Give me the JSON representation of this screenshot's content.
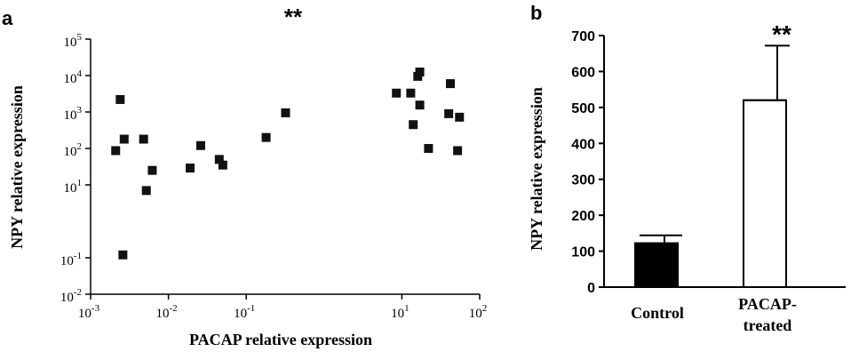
{
  "chart_data": [
    {
      "panel_label": "a",
      "type": "scatter",
      "significance": "**",
      "xlabel": "PACAP relative expression",
      "ylabel": "NPY relative expression",
      "xscale": "log",
      "yscale": "log",
      "xlim": [
        0.001,
        100
      ],
      "ylim": [
        0.01,
        100000
      ],
      "x_ticks": [
        {
          "value": 0.001,
          "base": "10",
          "exp": "-3"
        },
        {
          "value": 0.01,
          "base": "10",
          "exp": "-2"
        },
        {
          "value": 0.1,
          "base": "10",
          "exp": "-1"
        },
        {
          "value": 10,
          "base": "10",
          "exp": "1"
        },
        {
          "value": 100,
          "base": "10",
          "exp": "2"
        }
      ],
      "y_ticks": [
        {
          "value": 0.01,
          "base": "10",
          "exp": "-2"
        },
        {
          "value": 0.1,
          "base": "10",
          "exp": "-1"
        },
        {
          "value": 10,
          "base": "10",
          "exp": "1"
        },
        {
          "value": 100,
          "base": "10",
          "exp": "2"
        },
        {
          "value": 1000,
          "base": "10",
          "exp": "3"
        },
        {
          "value": 10000,
          "base": "10",
          "exp": "4"
        },
        {
          "value": 100000,
          "base": "10",
          "exp": "5"
        }
      ],
      "grid": false,
      "points": [
        {
          "x": 0.0021,
          "y": 87
        },
        {
          "x": 0.0024,
          "y": 2200
        },
        {
          "x": 0.0026,
          "y": 0.12
        },
        {
          "x": 0.0027,
          "y": 180
        },
        {
          "x": 0.0048,
          "y": 180
        },
        {
          "x": 0.0052,
          "y": 7
        },
        {
          "x": 0.0062,
          "y": 25
        },
        {
          "x": 0.019,
          "y": 29
        },
        {
          "x": 0.026,
          "y": 120
        },
        {
          "x": 0.045,
          "y": 50
        },
        {
          "x": 0.05,
          "y": 35
        },
        {
          "x": 0.18,
          "y": 200
        },
        {
          "x": 0.32,
          "y": 950
        },
        {
          "x": 8.5,
          "y": 3300
        },
        {
          "x": 13,
          "y": 3300
        },
        {
          "x": 14,
          "y": 450
        },
        {
          "x": 16,
          "y": 9500
        },
        {
          "x": 17,
          "y": 12500
        },
        {
          "x": 17,
          "y": 1550
        },
        {
          "x": 22,
          "y": 100
        },
        {
          "x": 40,
          "y": 900
        },
        {
          "x": 42,
          "y": 6000
        },
        {
          "x": 52,
          "y": 87
        },
        {
          "x": 55,
          "y": 720
        }
      ]
    },
    {
      "panel_label": "b",
      "type": "bar",
      "significance": "**",
      "ylabel": "NPY relative expression",
      "ylim": [
        0,
        700
      ],
      "y_ticks": [
        0,
        100,
        200,
        300,
        400,
        500,
        600,
        700
      ],
      "grid": false,
      "categories": [
        "Control",
        "PACAP-treated"
      ],
      "category_lines": [
        [
          "Control"
        ],
        [
          "PACAP-",
          "treated"
        ]
      ],
      "values": [
        122,
        520
      ],
      "errors": [
        22,
        152
      ],
      "colors": [
        "#000000",
        "#ffffff"
      ]
    }
  ]
}
